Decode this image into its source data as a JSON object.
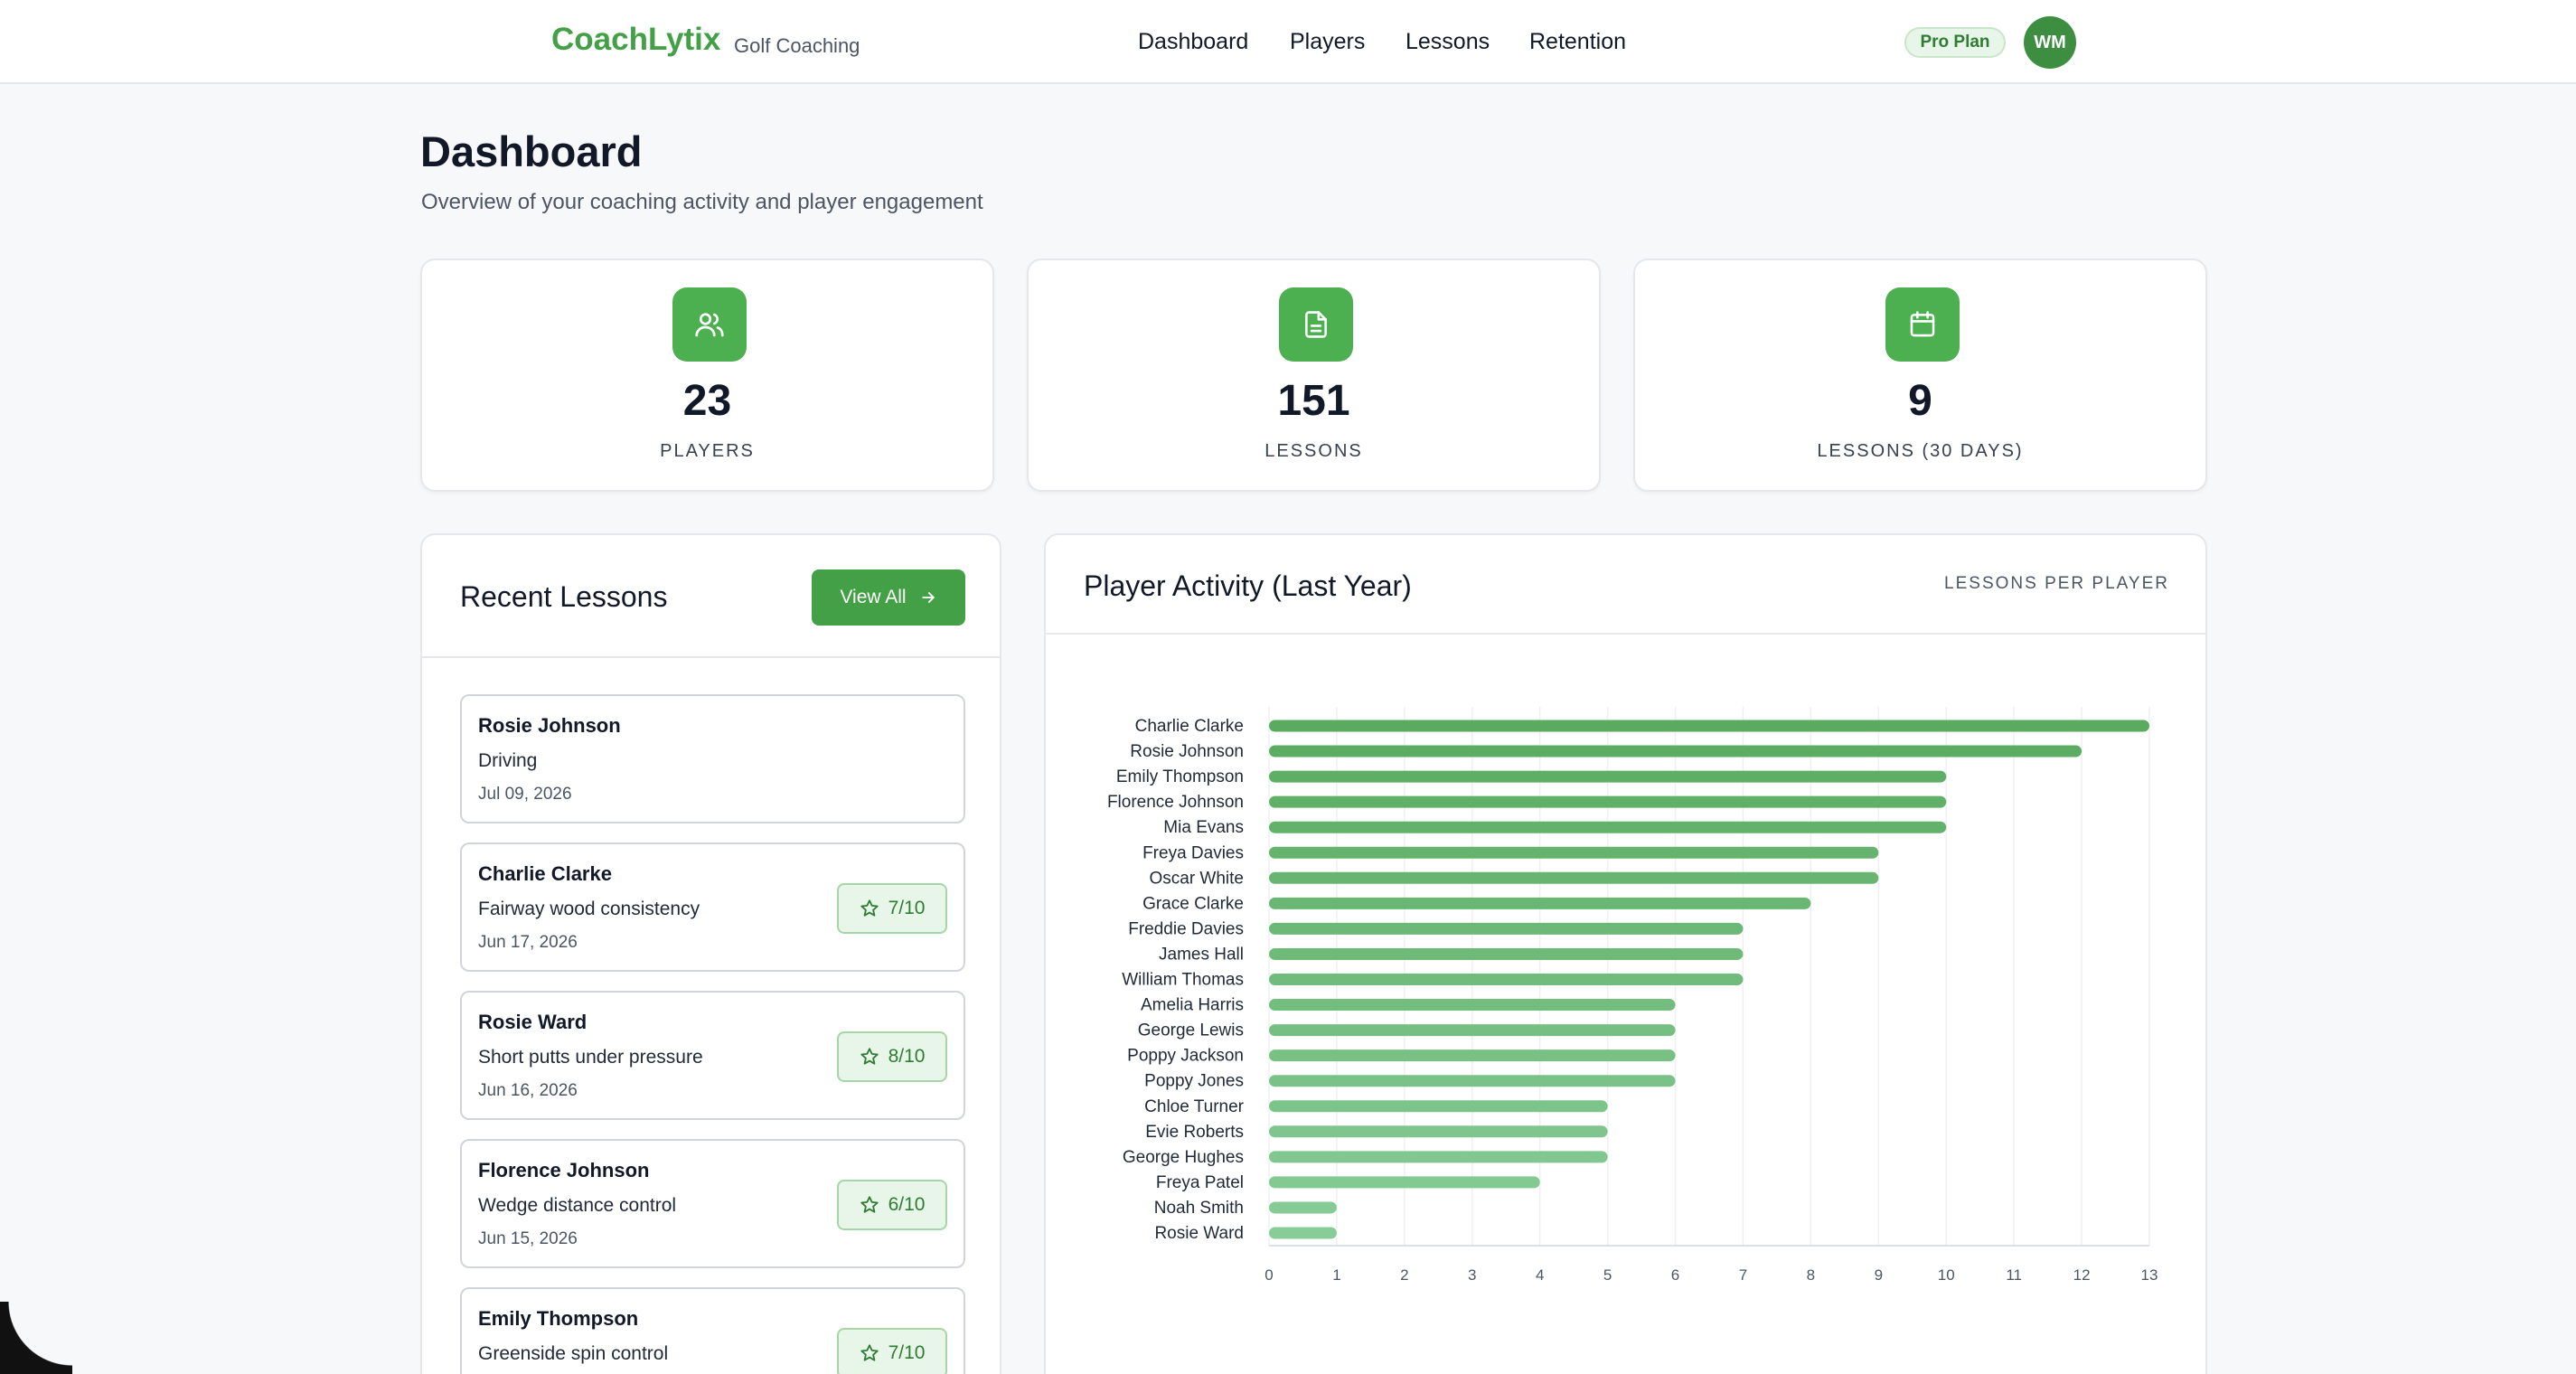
{
  "header": {
    "brand": "CoachLytix",
    "brand_sub": "Golf Coaching",
    "nav": [
      "Dashboard",
      "Players",
      "Lessons",
      "Retention"
    ],
    "plan_badge": "Pro Plan",
    "avatar_initials": "WM"
  },
  "page": {
    "title": "Dashboard",
    "subtitle": "Overview of your coaching activity and player engagement"
  },
  "stats": [
    {
      "value": "23",
      "label": "PLAYERS",
      "icon": "users-icon"
    },
    {
      "value": "151",
      "label": "LESSONS",
      "icon": "document-icon"
    },
    {
      "value": "9",
      "label": "LESSONS (30 DAYS)",
      "icon": "calendar-icon"
    }
  ],
  "recent_lessons": {
    "title": "Recent Lessons",
    "view_all_label": "View All",
    "items": [
      {
        "name": "Rosie Johnson",
        "topic": "Driving",
        "date": "Jul 09, 2026",
        "rating": ""
      },
      {
        "name": "Charlie Clarke",
        "topic": "Fairway wood consistency",
        "date": "Jun 17, 2026",
        "rating": "7/10"
      },
      {
        "name": "Rosie Ward",
        "topic": "Short putts under pressure",
        "date": "Jun 16, 2026",
        "rating": "8/10"
      },
      {
        "name": "Florence Johnson",
        "topic": "Wedge distance control",
        "date": "Jun 15, 2026",
        "rating": "6/10"
      },
      {
        "name": "Emily Thompson",
        "topic": "Greenside spin control",
        "date": "",
        "rating": "7/10"
      }
    ]
  },
  "activity": {
    "title": "Player Activity (Last Year)",
    "caption": "LESSONS PER PLAYER"
  },
  "chart_data": {
    "type": "bar",
    "orientation": "horizontal",
    "categories": [
      "Charlie Clarke",
      "Rosie Johnson",
      "Emily Thompson",
      "Florence Johnson",
      "Mia Evans",
      "Freya Davies",
      "Oscar White",
      "Grace Clarke",
      "Freddie Davies",
      "James Hall",
      "William Thomas",
      "Amelia Harris",
      "George Lewis",
      "Poppy Jackson",
      "Poppy Jones",
      "Chloe Turner",
      "Evie Roberts",
      "George Hughes",
      "Freya Patel",
      "Noah Smith",
      "Rosie Ward"
    ],
    "values": [
      13,
      12,
      10,
      10,
      10,
      9,
      9,
      8,
      7,
      7,
      7,
      6,
      6,
      6,
      6,
      5,
      5,
      5,
      4,
      1,
      1
    ],
    "xlim": [
      0,
      13
    ],
    "xticks": [
      0,
      1,
      2,
      3,
      4,
      5,
      6,
      7,
      8,
      9,
      10,
      11,
      12,
      13
    ],
    "grid": true,
    "colors": {
      "high": "#5aab60",
      "low": "#88cc98"
    }
  }
}
